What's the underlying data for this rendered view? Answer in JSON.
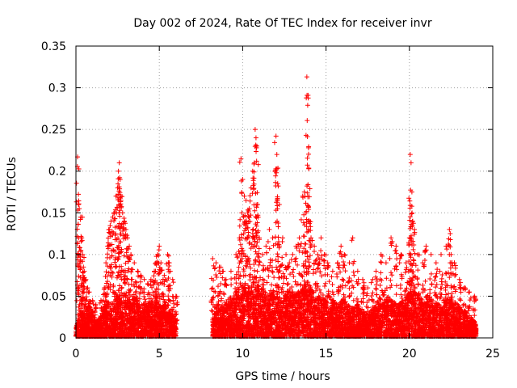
{
  "chart_data": {
    "type": "scatter",
    "title": "Day 002 of 2024, Rate Of TEC Index for receiver invr",
    "xlabel": "GPS time / hours",
    "ylabel": "ROTI / TECUs",
    "xlim": [
      0,
      25
    ],
    "ylim": [
      0,
      0.35
    ],
    "xticks": [
      0,
      5,
      10,
      15,
      20,
      25
    ],
    "yticks": [
      0,
      0.05,
      0.1,
      0.15,
      0.2,
      0.25,
      0.3,
      0.35
    ],
    "xtick_labels": [
      "0",
      "5",
      "10",
      "15",
      "20",
      "25"
    ],
    "ytick_labels": [
      "0",
      "0.05",
      "0.1",
      "0.15",
      "0.2",
      "0.25",
      "0.3",
      "0.35"
    ],
    "grid": true,
    "marker": "+",
    "color": "#ff0000",
    "data_gap_hours": [
      6.1,
      8.1
    ],
    "series": [
      {
        "name": "ROTI",
        "points": [
          [
            0.1,
            0.217
          ],
          [
            0.15,
            0.16
          ],
          [
            0.2,
            0.155
          ],
          [
            0.3,
            0.145
          ],
          [
            0.35,
            0.12
          ],
          [
            0.4,
            0.1
          ],
          [
            0.45,
            0.085
          ],
          [
            0.5,
            0.08
          ],
          [
            0.6,
            0.07
          ],
          [
            0.7,
            0.06
          ],
          [
            0.8,
            0.055
          ],
          [
            1.0,
            0.045
          ],
          [
            1.2,
            0.04
          ],
          [
            1.5,
            0.045
          ],
          [
            1.7,
            0.06
          ],
          [
            1.8,
            0.09
          ],
          [
            1.9,
            0.11
          ],
          [
            2.0,
            0.13
          ],
          [
            2.1,
            0.14
          ],
          [
            2.2,
            0.145
          ],
          [
            2.3,
            0.15
          ],
          [
            2.4,
            0.17
          ],
          [
            2.5,
            0.18
          ],
          [
            2.55,
            0.2
          ],
          [
            2.6,
            0.21
          ],
          [
            2.65,
            0.19
          ],
          [
            2.7,
            0.17
          ],
          [
            2.8,
            0.15
          ],
          [
            2.9,
            0.14
          ],
          [
            3.0,
            0.13
          ],
          [
            3.1,
            0.12
          ],
          [
            3.2,
            0.11
          ],
          [
            3.3,
            0.1
          ],
          [
            3.5,
            0.09
          ],
          [
            3.7,
            0.08
          ],
          [
            3.9,
            0.075
          ],
          [
            4.1,
            0.07
          ],
          [
            4.3,
            0.065
          ],
          [
            4.5,
            0.07
          ],
          [
            4.7,
            0.08
          ],
          [
            4.8,
            0.09
          ],
          [
            4.9,
            0.1
          ],
          [
            5.0,
            0.11
          ],
          [
            5.1,
            0.09
          ],
          [
            5.3,
            0.075
          ],
          [
            5.5,
            0.1
          ],
          [
            5.6,
            0.09
          ],
          [
            5.8,
            0.07
          ],
          [
            6.0,
            0.05
          ],
          [
            8.2,
            0.095
          ],
          [
            8.4,
            0.09
          ],
          [
            8.6,
            0.085
          ],
          [
            8.8,
            0.08
          ],
          [
            9.0,
            0.07
          ],
          [
            9.3,
            0.08
          ],
          [
            9.6,
            0.1
          ],
          [
            9.8,
            0.12
          ],
          [
            9.9,
            0.215
          ],
          [
            10.0,
            0.19
          ],
          [
            10.1,
            0.17
          ],
          [
            10.2,
            0.165
          ],
          [
            10.3,
            0.15
          ],
          [
            10.4,
            0.155
          ],
          [
            10.5,
            0.18
          ],
          [
            10.6,
            0.2
          ],
          [
            10.7,
            0.21
          ],
          [
            10.75,
            0.25
          ],
          [
            10.8,
            0.24
          ],
          [
            10.85,
            0.23
          ],
          [
            10.9,
            0.16
          ],
          [
            11.0,
            0.12
          ],
          [
            11.2,
            0.1
          ],
          [
            11.4,
            0.11
          ],
          [
            11.6,
            0.13
          ],
          [
            11.8,
            0.12
          ],
          [
            12.0,
            0.242
          ],
          [
            12.05,
            0.22
          ],
          [
            12.1,
            0.185
          ],
          [
            12.2,
            0.16
          ],
          [
            12.4,
            0.12
          ],
          [
            12.6,
            0.1
          ],
          [
            12.8,
            0.09
          ],
          [
            13.0,
            0.1
          ],
          [
            13.2,
            0.11
          ],
          [
            13.4,
            0.12
          ],
          [
            13.6,
            0.17
          ],
          [
            13.7,
            0.175
          ],
          [
            13.8,
            0.15
          ],
          [
            13.85,
            0.313
          ],
          [
            13.9,
            0.279
          ],
          [
            13.95,
            0.228
          ],
          [
            14.0,
            0.14
          ],
          [
            14.1,
            0.12
          ],
          [
            14.3,
            0.11
          ],
          [
            14.5,
            0.1
          ],
          [
            14.7,
            0.12
          ],
          [
            14.9,
            0.1
          ],
          [
            15.1,
            0.09
          ],
          [
            15.4,
            0.08
          ],
          [
            15.7,
            0.09
          ],
          [
            15.9,
            0.11
          ],
          [
            16.1,
            0.1
          ],
          [
            16.4,
            0.09
          ],
          [
            16.6,
            0.12
          ],
          [
            16.9,
            0.08
          ],
          [
            17.2,
            0.07
          ],
          [
            17.5,
            0.06
          ],
          [
            17.8,
            0.07
          ],
          [
            18.0,
            0.08
          ],
          [
            18.3,
            0.1
          ],
          [
            18.6,
            0.09
          ],
          [
            18.9,
            0.12
          ],
          [
            19.2,
            0.11
          ],
          [
            19.5,
            0.1
          ],
          [
            19.8,
            0.09
          ],
          [
            20.0,
            0.12
          ],
          [
            20.05,
            0.22
          ],
          [
            20.1,
            0.21
          ],
          [
            20.15,
            0.175
          ],
          [
            20.2,
            0.14
          ],
          [
            20.3,
            0.13
          ],
          [
            20.5,
            0.1
          ],
          [
            20.8,
            0.09
          ],
          [
            21.0,
            0.11
          ],
          [
            21.3,
            0.1
          ],
          [
            21.6,
            0.09
          ],
          [
            21.9,
            0.1
          ],
          [
            22.2,
            0.11
          ],
          [
            22.4,
            0.13
          ],
          [
            22.5,
            0.1
          ],
          [
            22.7,
            0.09
          ],
          [
            23.0,
            0.07
          ],
          [
            23.3,
            0.06
          ],
          [
            23.6,
            0.055
          ],
          [
            23.9,
            0.05
          ]
        ],
        "baseline_band_points": [
          [
            0.0,
            0.01
          ],
          [
            0.3,
            0.03
          ],
          [
            0.6,
            0.02
          ],
          [
            0.9,
            0.035
          ],
          [
            1.2,
            0.015
          ],
          [
            1.5,
            0.025
          ],
          [
            1.8,
            0.04
          ],
          [
            2.1,
            0.03
          ],
          [
            2.4,
            0.05
          ],
          [
            2.7,
            0.04
          ],
          [
            3.0,
            0.05
          ],
          [
            3.3,
            0.035
          ],
          [
            3.6,
            0.045
          ],
          [
            3.9,
            0.03
          ],
          [
            4.2,
            0.04
          ],
          [
            4.5,
            0.035
          ],
          [
            4.8,
            0.05
          ],
          [
            5.1,
            0.03
          ],
          [
            5.4,
            0.04
          ],
          [
            5.7,
            0.025
          ],
          [
            6.0,
            0.02
          ],
          [
            8.2,
            0.02
          ],
          [
            8.5,
            0.035
          ],
          [
            8.8,
            0.03
          ],
          [
            9.1,
            0.04
          ],
          [
            9.4,
            0.045
          ],
          [
            9.7,
            0.05
          ],
          [
            10.0,
            0.055
          ],
          [
            10.3,
            0.05
          ],
          [
            10.6,
            0.06
          ],
          [
            10.9,
            0.055
          ],
          [
            11.2,
            0.05
          ],
          [
            11.5,
            0.045
          ],
          [
            11.8,
            0.05
          ],
          [
            12.1,
            0.045
          ],
          [
            12.4,
            0.04
          ],
          [
            12.7,
            0.05
          ],
          [
            13.0,
            0.045
          ],
          [
            13.3,
            0.05
          ],
          [
            13.6,
            0.055
          ],
          [
            13.9,
            0.06
          ],
          [
            14.2,
            0.05
          ],
          [
            14.5,
            0.045
          ],
          [
            14.8,
            0.04
          ],
          [
            15.1,
            0.045
          ],
          [
            15.4,
            0.04
          ],
          [
            15.7,
            0.035
          ],
          [
            16.0,
            0.04
          ],
          [
            16.3,
            0.035
          ],
          [
            16.6,
            0.03
          ],
          [
            16.9,
            0.035
          ],
          [
            17.2,
            0.03
          ],
          [
            17.5,
            0.025
          ],
          [
            17.8,
            0.03
          ],
          [
            18.1,
            0.04
          ],
          [
            18.4,
            0.05
          ],
          [
            18.7,
            0.045
          ],
          [
            19.0,
            0.04
          ],
          [
            19.3,
            0.035
          ],
          [
            19.6,
            0.04
          ],
          [
            19.9,
            0.045
          ],
          [
            20.2,
            0.05
          ],
          [
            20.5,
            0.045
          ],
          [
            20.8,
            0.04
          ],
          [
            21.1,
            0.045
          ],
          [
            21.4,
            0.04
          ],
          [
            21.7,
            0.035
          ],
          [
            22.0,
            0.04
          ],
          [
            22.3,
            0.045
          ],
          [
            22.6,
            0.04
          ],
          [
            22.9,
            0.035
          ],
          [
            23.2,
            0.03
          ],
          [
            23.5,
            0.025
          ],
          [
            23.8,
            0.02
          ],
          [
            24.0,
            0.015
          ]
        ]
      }
    ]
  }
}
